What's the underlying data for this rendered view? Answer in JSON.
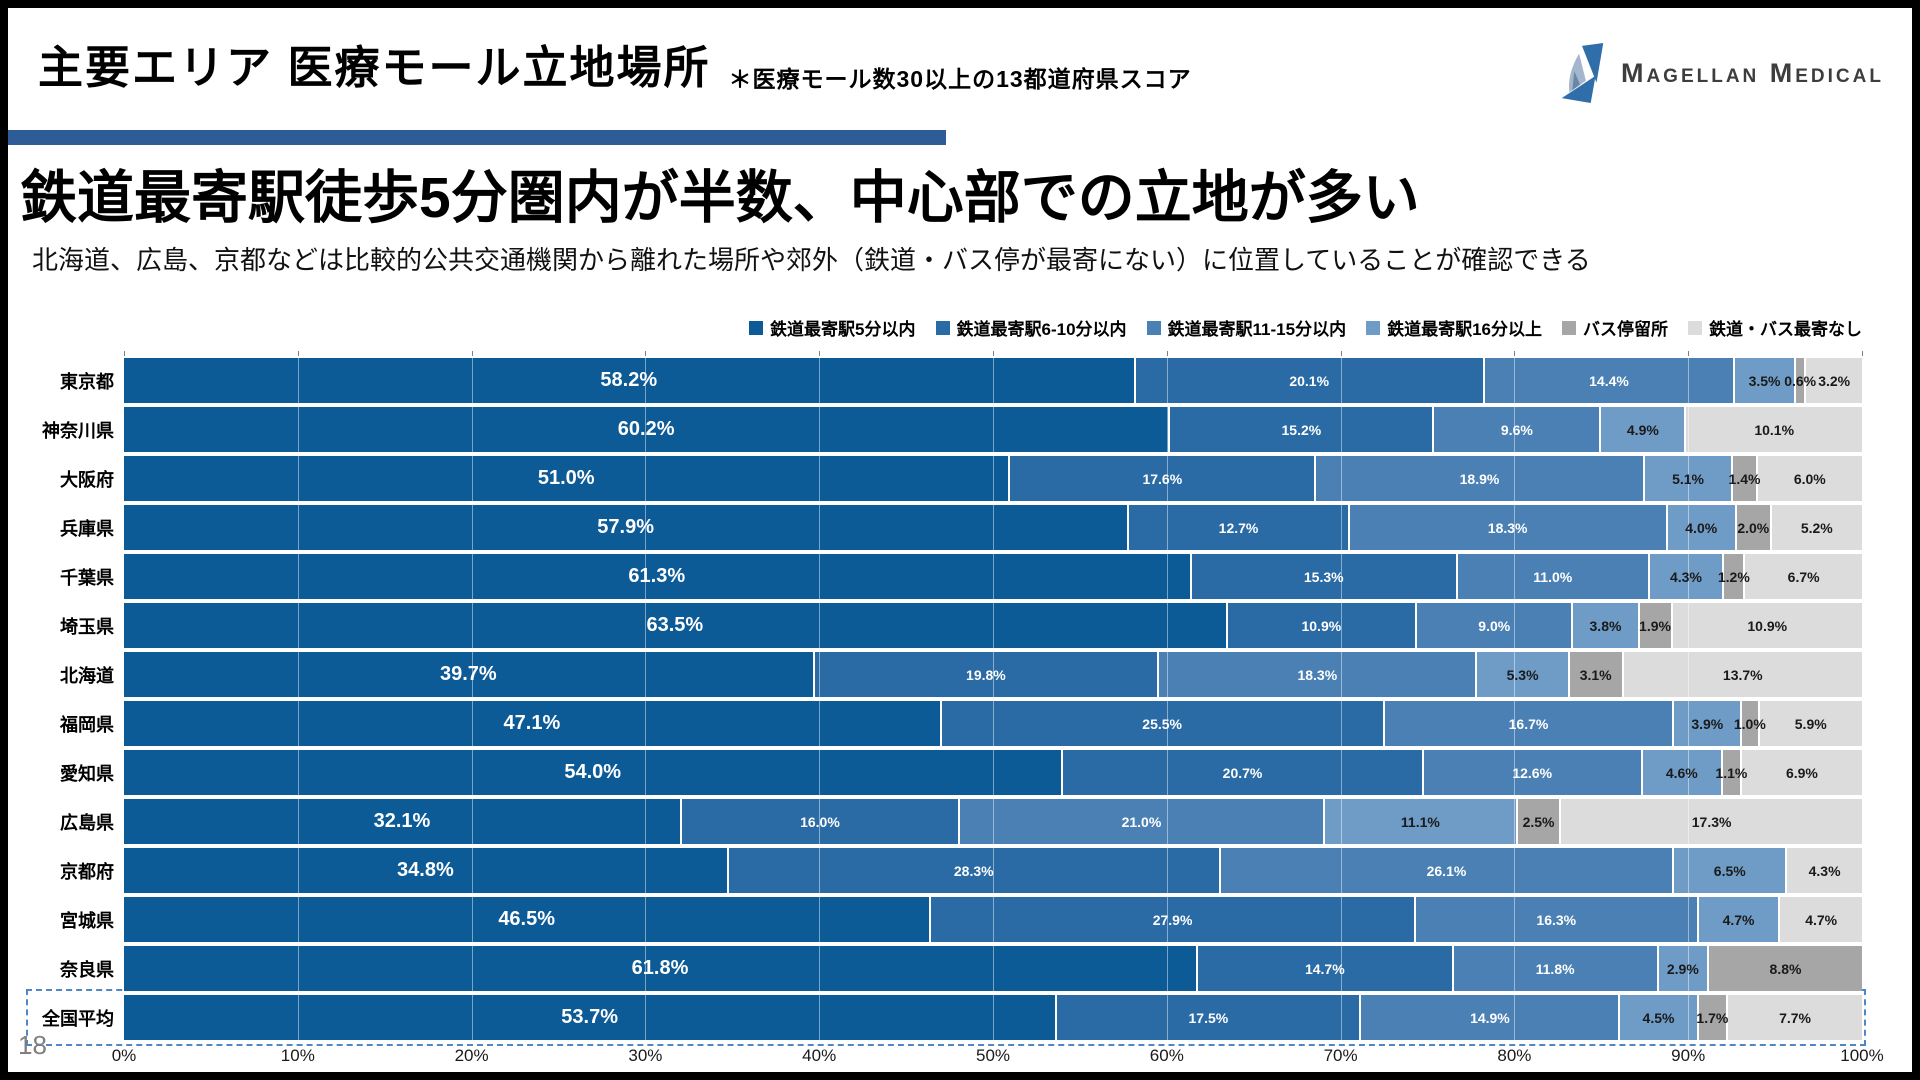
{
  "header": {
    "title": "主要エリア 医療モール立地場所",
    "note": "＊医療モール数30以上の13都道府県スコア",
    "logo_text": "Magellan Medical"
  },
  "headline": {
    "main": "鉄道最寄駅徒歩5分圏内が半数、中心部での立地が多い",
    "sub": "北海道、広島、京都などは比較的公共交通機関から離れた場所や郊外（鉄道・バス停が最寄にない）に位置していることが確認できる"
  },
  "page_number": "18",
  "colors": {
    "title_underline": "#2e5c96",
    "highlight_box": "#4e86c6",
    "logo_blue": "#2f6ea8",
    "logo_light_blue": "#a3b6cc"
  },
  "chart_data": {
    "type": "bar",
    "orientation": "horizontal",
    "stacked": true,
    "unit": "%",
    "xlim": [
      0,
      100
    ],
    "grid": true,
    "legend_position": "top-right",
    "highlight_category": "全国平均",
    "x_ticks": [
      "0%",
      "10%",
      "20%",
      "30%",
      "40%",
      "50%",
      "60%",
      "70%",
      "80%",
      "90%",
      "100%"
    ],
    "categories": [
      "東京都",
      "神奈川県",
      "大阪府",
      "兵庫県",
      "千葉県",
      "埼玉県",
      "北海道",
      "福岡県",
      "愛知県",
      "広島県",
      "京都府",
      "宮城県",
      "奈良県",
      "全国平均"
    ],
    "series": [
      {
        "name": "鉄道最寄駅5分以内",
        "color": "#0c5a96",
        "values": [
          58.2,
          60.2,
          51.0,
          57.9,
          61.3,
          63.5,
          39.7,
          47.1,
          54.0,
          32.1,
          34.8,
          46.5,
          61.8,
          53.7
        ]
      },
      {
        "name": "鉄道最寄駅6-10分以内",
        "color": "#2a6aa5",
        "values": [
          20.1,
          15.2,
          17.6,
          12.7,
          15.3,
          10.9,
          19.8,
          25.5,
          20.7,
          16.0,
          28.3,
          27.9,
          14.7,
          17.5
        ]
      },
      {
        "name": "鉄道最寄駅11-15分以内",
        "color": "#4a80b4",
        "values": [
          14.4,
          9.6,
          18.9,
          18.3,
          11.0,
          9.0,
          18.3,
          16.7,
          12.6,
          21.0,
          26.1,
          16.3,
          11.8,
          14.9
        ]
      },
      {
        "name": "鉄道最寄駅16分以上",
        "color": "#6f9cc6",
        "values": [
          3.5,
          4.9,
          5.1,
          4.0,
          4.3,
          3.8,
          5.3,
          3.9,
          4.6,
          11.1,
          6.5,
          4.7,
          2.9,
          4.5
        ]
      },
      {
        "name": "バス停留所",
        "color": "#a6a6a6",
        "values": [
          0.6,
          0,
          1.4,
          2.0,
          1.2,
          1.9,
          3.1,
          1.0,
          1.1,
          2.5,
          0,
          0,
          8.8,
          1.7
        ]
      },
      {
        "name": "鉄道・バス最寄なし",
        "color": "#dcdcdc",
        "values": [
          3.2,
          10.1,
          6.0,
          5.2,
          6.7,
          10.9,
          13.7,
          5.9,
          6.9,
          17.3,
          4.3,
          4.7,
          0,
          7.7
        ]
      }
    ]
  }
}
